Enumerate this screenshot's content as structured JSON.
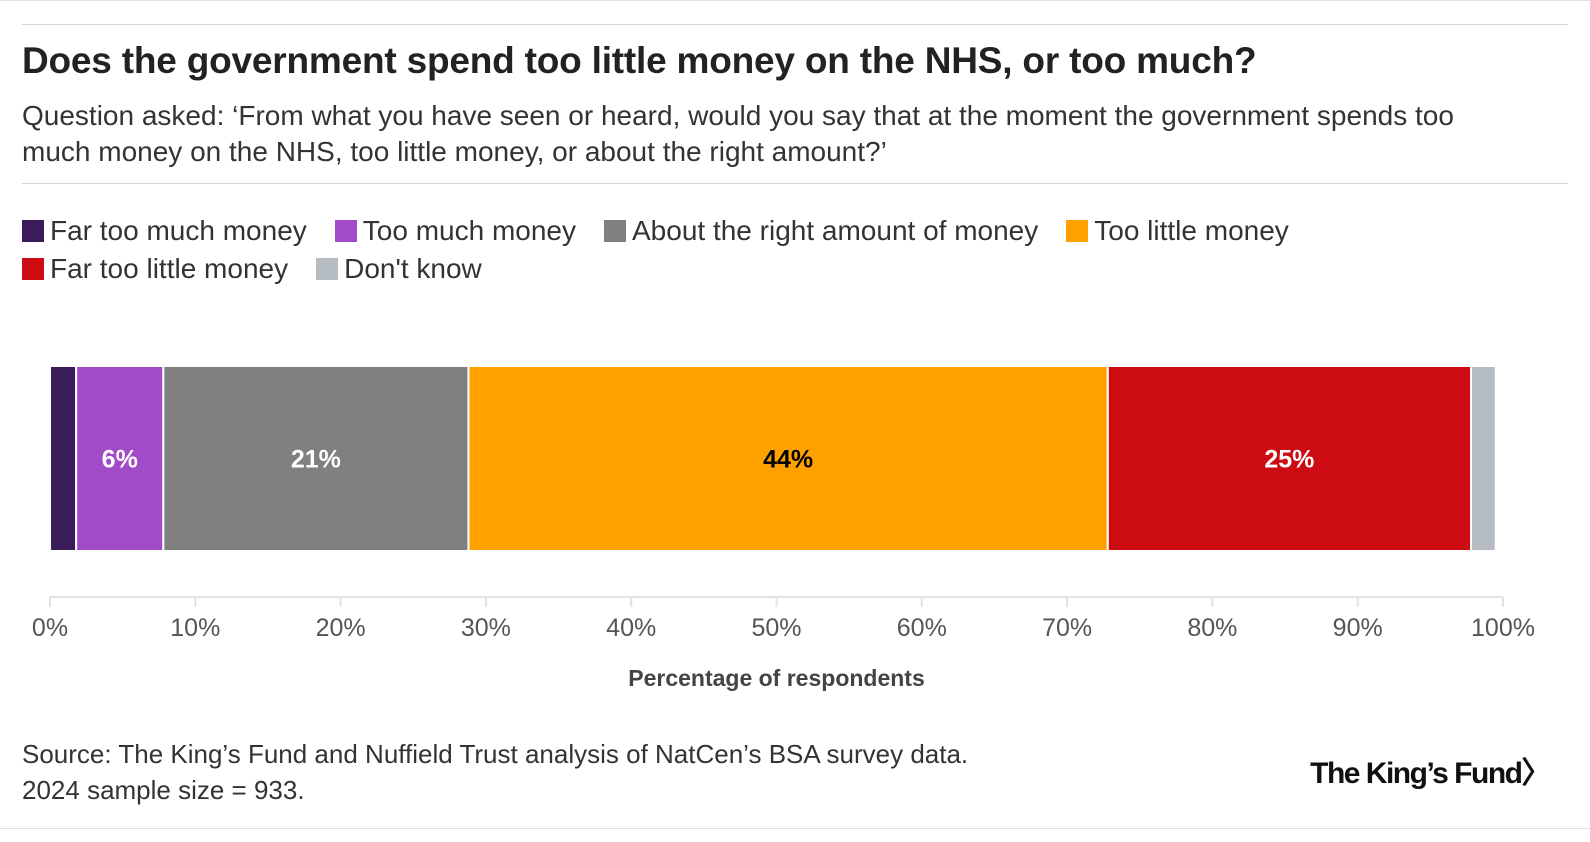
{
  "title": "Does the government spend too little money on the NHS, or too much?",
  "subtitle": "Question asked: ‘From what you have seen or heard, would you say that at the moment the government spends too much money on the NHS, too little money, or about the right amount?’",
  "legend": [
    {
      "label": "Far too much money",
      "color": "#3b1c5a"
    },
    {
      "label": "Too much money",
      "color": "#a14bc9"
    },
    {
      "label": "About the right amount of money",
      "color": "#808080"
    },
    {
      "label": "Too little money",
      "color": "#ffa200"
    },
    {
      "label": "Far too little money",
      "color": "#cc0c12"
    },
    {
      "label": "Don't know",
      "color": "#b5bcc2"
    }
  ],
  "chart_data": {
    "type": "bar",
    "orientation": "horizontal",
    "stacked": true,
    "series": [
      {
        "name": "Far too much money",
        "value": 1.8,
        "color": "#3b1c5a",
        "label": ""
      },
      {
        "name": "Too much money",
        "value": 6,
        "color": "#a14bc9",
        "label": "6%",
        "label_color": "#ffffff"
      },
      {
        "name": "About the right amount of money",
        "value": 21,
        "color": "#808080",
        "label": "21%",
        "label_color": "#ffffff"
      },
      {
        "name": "Too little money",
        "value": 44,
        "color": "#ffa200",
        "label": "44%",
        "label_color": "#000000"
      },
      {
        "name": "Far too little money",
        "value": 25,
        "color": "#cc0c12",
        "label": "25%",
        "label_color": "#ffffff"
      },
      {
        "name": "Don't know",
        "value": 1.7,
        "color": "#b5bcc2",
        "label": ""
      }
    ],
    "xlim": [
      0,
      100
    ],
    "xticks": [
      "0%",
      "10%",
      "20%",
      "30%",
      "40%",
      "50%",
      "60%",
      "70%",
      "80%",
      "90%",
      "100%"
    ],
    "xlabel": "Percentage of respondents",
    "grid": false
  },
  "source": {
    "line1": "Source: The King’s Fund and Nuffield Trust analysis of NatCen’s BSA survey data.",
    "line2": "2024 sample size = 933."
  },
  "logo": "The King’s Fund〉"
}
